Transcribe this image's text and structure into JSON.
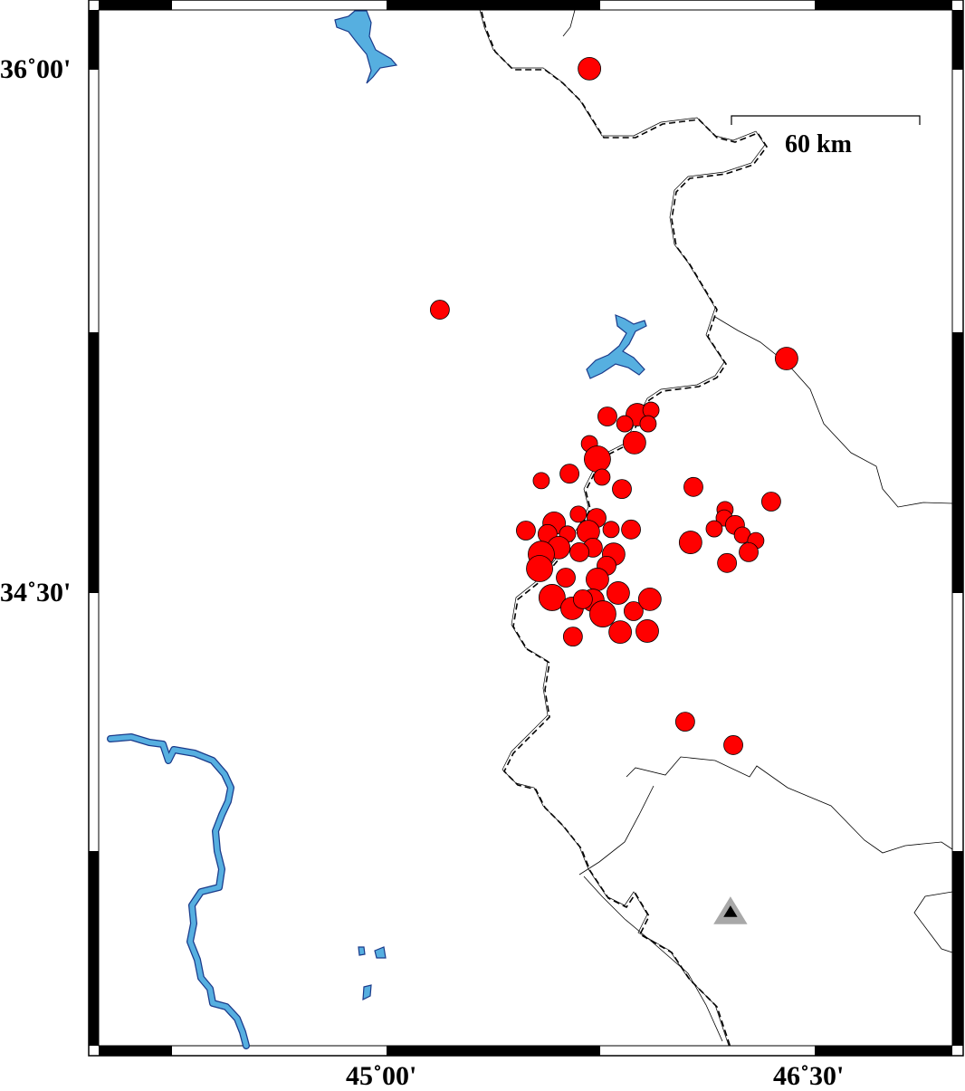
{
  "map": {
    "lat_labels": [
      "36˚00'",
      "34˚30'"
    ],
    "lon_labels": [
      "45˚00'",
      "46˚30'"
    ],
    "scale_bar": {
      "label": "60 km",
      "length_km": 60
    },
    "colors": {
      "event_fill": "#ff0000",
      "water": "#56afe0",
      "water_outline": "#1a3a8a",
      "station_outer": "#a8a8a8",
      "station_inner": "#000000"
    },
    "station": {
      "lon": 46.204,
      "lat": 33.586,
      "icon": "triangle-station-icon"
    },
    "events": [
      {
        "lon": 45.709,
        "lat": 36.003,
        "size": 3
      },
      {
        "lon": 45.184,
        "lat": 35.312,
        "size": 2
      },
      {
        "lon": 46.401,
        "lat": 35.172,
        "size": 3
      },
      {
        "lon": 45.772,
        "lat": 35.006,
        "size": 2
      },
      {
        "lon": 45.877,
        "lat": 35.011,
        "size": 3
      },
      {
        "lon": 45.925,
        "lat": 35.024,
        "size": 1
      },
      {
        "lon": 45.833,
        "lat": 34.985,
        "size": 1
      },
      {
        "lon": 45.915,
        "lat": 34.985,
        "size": 1
      },
      {
        "lon": 45.867,
        "lat": 34.931,
        "size": 3
      },
      {
        "lon": 45.709,
        "lat": 34.928,
        "size": 1
      },
      {
        "lon": 45.737,
        "lat": 34.884,
        "size": 4
      },
      {
        "lon": 45.639,
        "lat": 34.842,
        "size": 2
      },
      {
        "lon": 45.54,
        "lat": 34.822,
        "size": 1
      },
      {
        "lon": 45.753,
        "lat": 34.832,
        "size": 1
      },
      {
        "lon": 45.823,
        "lat": 34.798,
        "size": 2
      },
      {
        "lon": 46.074,
        "lat": 34.804,
        "size": 2
      },
      {
        "lon": 46.347,
        "lat": 34.762,
        "size": 2
      },
      {
        "lon": 46.185,
        "lat": 34.739,
        "size": 1
      },
      {
        "lon": 46.182,
        "lat": 34.715,
        "size": 1
      },
      {
        "lon": 46.147,
        "lat": 34.684,
        "size": 1
      },
      {
        "lon": 46.22,
        "lat": 34.695,
        "size": 2
      },
      {
        "lon": 46.246,
        "lat": 34.666,
        "size": 1
      },
      {
        "lon": 46.293,
        "lat": 34.65,
        "size": 1
      },
      {
        "lon": 46.064,
        "lat": 34.645,
        "size": 3
      },
      {
        "lon": 46.268,
        "lat": 34.617,
        "size": 2
      },
      {
        "lon": 46.192,
        "lat": 34.586,
        "size": 2
      },
      {
        "lon": 45.486,
        "lat": 34.679,
        "size": 2
      },
      {
        "lon": 45.585,
        "lat": 34.7,
        "size": 3
      },
      {
        "lon": 45.67,
        "lat": 34.726,
        "size": 1
      },
      {
        "lon": 45.734,
        "lat": 34.715,
        "size": 2
      },
      {
        "lon": 45.785,
        "lat": 34.682,
        "size": 1
      },
      {
        "lon": 45.855,
        "lat": 34.682,
        "size": 2
      },
      {
        "lon": 45.562,
        "lat": 34.669,
        "size": 2
      },
      {
        "lon": 45.632,
        "lat": 34.669,
        "size": 1
      },
      {
        "lon": 45.705,
        "lat": 34.676,
        "size": 3
      },
      {
        "lon": 45.601,
        "lat": 34.63,
        "size": 3
      },
      {
        "lon": 45.721,
        "lat": 34.63,
        "size": 2
      },
      {
        "lon": 45.54,
        "lat": 34.611,
        "size": 4
      },
      {
        "lon": 45.794,
        "lat": 34.611,
        "size": 3
      },
      {
        "lon": 45.674,
        "lat": 34.617,
        "size": 2
      },
      {
        "lon": 45.534,
        "lat": 34.57,
        "size": 4
      },
      {
        "lon": 45.769,
        "lat": 34.578,
        "size": 2
      },
      {
        "lon": 45.626,
        "lat": 34.544,
        "size": 2
      },
      {
        "lon": 45.737,
        "lat": 34.539,
        "size": 3
      },
      {
        "lon": 45.81,
        "lat": 34.5,
        "size": 3
      },
      {
        "lon": 45.578,
        "lat": 34.487,
        "size": 4
      },
      {
        "lon": 45.648,
        "lat": 34.456,
        "size": 3
      },
      {
        "lon": 45.721,
        "lat": 34.479,
        "size": 3
      },
      {
        "lon": 45.756,
        "lat": 34.44,
        "size": 4
      },
      {
        "lon": 45.864,
        "lat": 34.448,
        "size": 2
      },
      {
        "lon": 45.921,
        "lat": 34.482,
        "size": 3
      },
      {
        "lon": 45.817,
        "lat": 34.388,
        "size": 3
      },
      {
        "lon": 45.912,
        "lat": 34.391,
        "size": 3
      },
      {
        "lon": 45.651,
        "lat": 34.375,
        "size": 2
      },
      {
        "lon": 45.686,
        "lat": 34.482,
        "size": 2
      },
      {
        "lon": 46.045,
        "lat": 34.131,
        "size": 2
      },
      {
        "lon": 46.214,
        "lat": 34.064,
        "size": 2
      }
    ]
  }
}
